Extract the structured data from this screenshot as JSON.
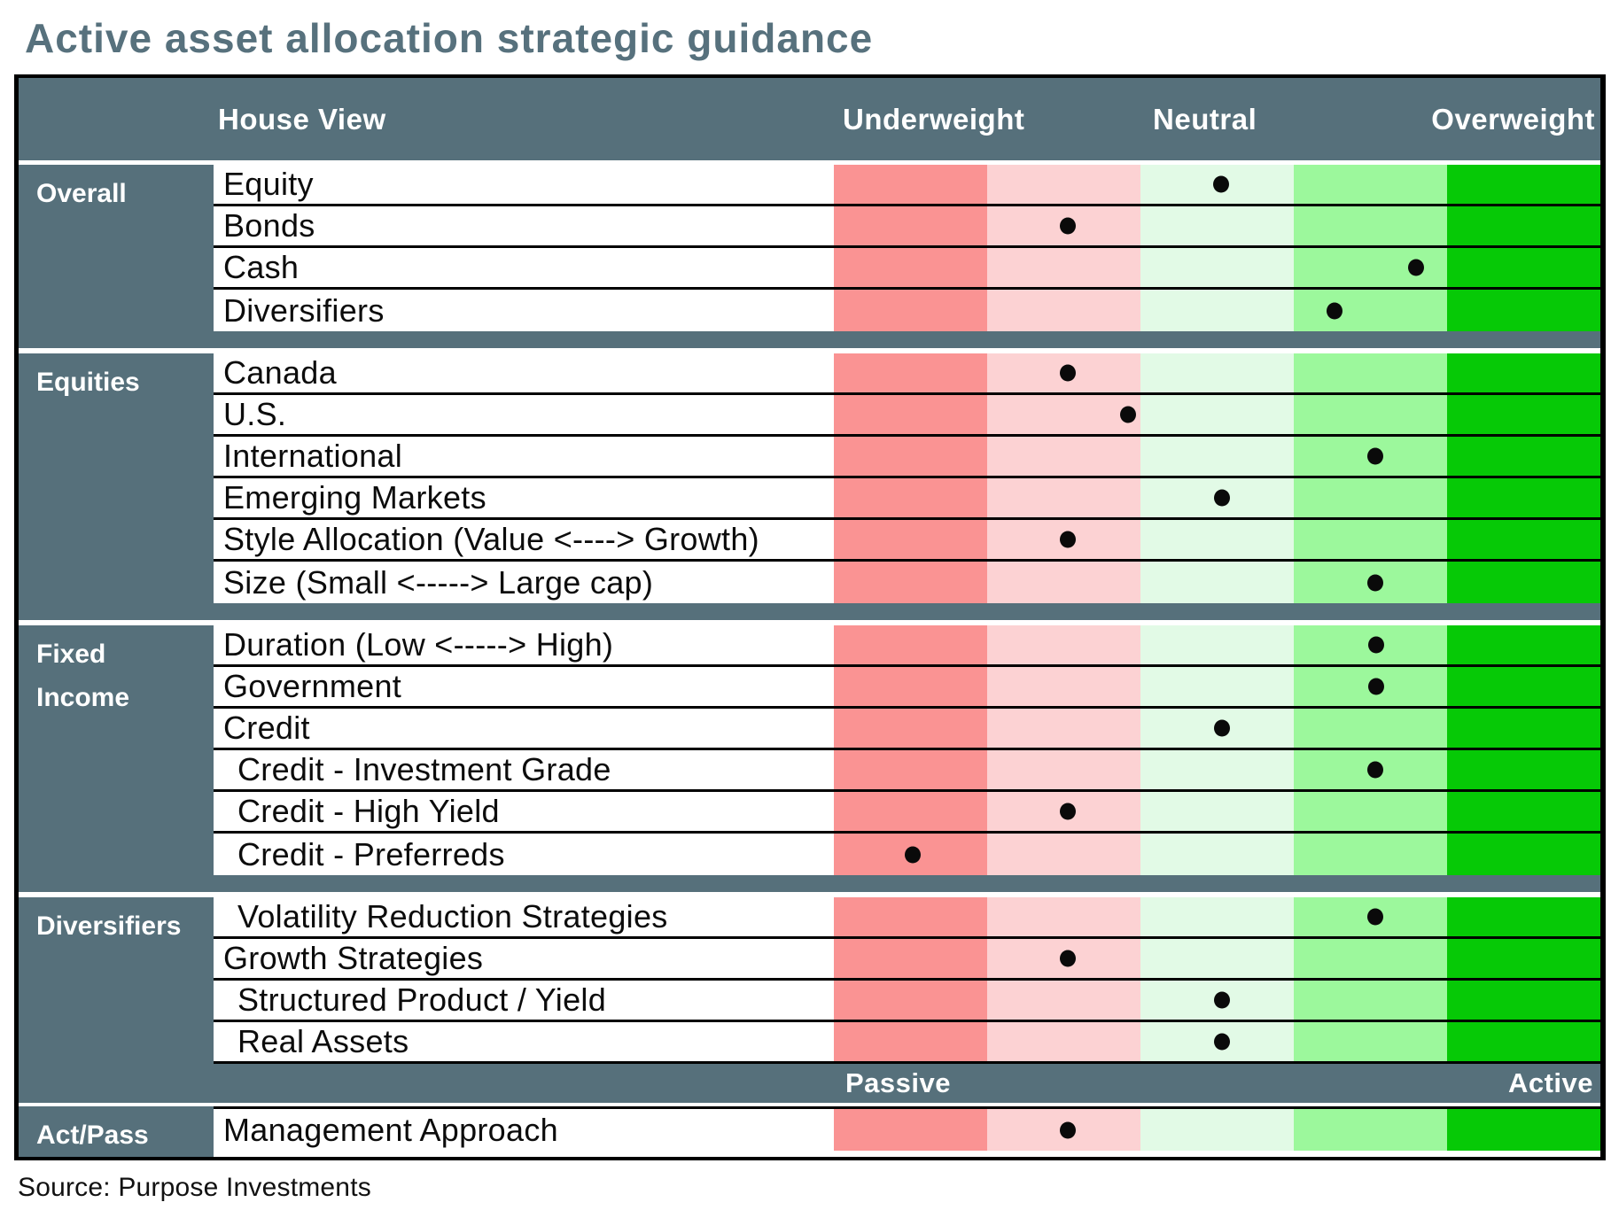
{
  "title": "Active asset allocation strategic guidance",
  "source": "Source: Purpose Investments",
  "header": {
    "house_view": "House View",
    "underweight": "Underweight",
    "neutral": "Neutral",
    "overweight": "Overweight"
  },
  "footer_band": {
    "passive": "Passive",
    "active": "Active"
  },
  "colors": {
    "slate": "#56707b",
    "title_text": "#57717d",
    "dot": "#0a0a0a",
    "scale": [
      "#fa9393",
      "#fcd2d3",
      "#e2fae6",
      "#9cf89c",
      "#06c906"
    ]
  },
  "sections": [
    {
      "name": "Overall",
      "name_lines": [
        "Overall"
      ],
      "gap_after": "band",
      "rows": [
        {
          "label": "Equity",
          "indent": false,
          "dot_pct": 50.5
        },
        {
          "label": "Bonds",
          "indent": false,
          "dot_pct": 30.5
        },
        {
          "label": "Cash",
          "indent": false,
          "dot_pct": 75.9
        },
        {
          "label": "Diversifiers",
          "indent": false,
          "dot_pct": 65.3
        }
      ]
    },
    {
      "name": "Equities",
      "name_lines": [
        "Equities"
      ],
      "gap_after": "band",
      "rows": [
        {
          "label": "Canada",
          "indent": false,
          "dot_pct": 30.5
        },
        {
          "label": "U.S.",
          "indent": false,
          "dot_pct": 38.4
        },
        {
          "label": "International",
          "indent": false,
          "dot_pct": 70.6
        },
        {
          "label": "Emerging Markets",
          "indent": false,
          "dot_pct": 50.6
        },
        {
          "label": "Style Allocation (Value <----> Growth)",
          "indent": false,
          "dot_pct": 30.5
        },
        {
          "label": "Size (Small <----->  Large cap)",
          "indent": false,
          "dot_pct": 70.6
        }
      ]
    },
    {
      "name": "Fixed Income",
      "name_lines": [
        "Fixed",
        "Income"
      ],
      "gap_after": "band",
      "rows": [
        {
          "label": "Duration (Low <-----> High)",
          "indent": false,
          "dot_pct": 70.7
        },
        {
          "label": "Government",
          "indent": false,
          "dot_pct": 70.7
        },
        {
          "label": "Credit",
          "indent": false,
          "dot_pct": 50.6
        },
        {
          "label": "Credit - Investment Grade",
          "indent": true,
          "dot_pct": 70.6
        },
        {
          "label": "Credit - High Yield",
          "indent": true,
          "dot_pct": 30.5
        },
        {
          "label": "Credit - Preferreds",
          "indent": true,
          "dot_pct": 10.3
        }
      ]
    },
    {
      "name": "Diversifiers",
      "name_lines": [
        "Diversifiers"
      ],
      "gap_after": "sliver",
      "passive_band": true,
      "rows": [
        {
          "label": "Volatility Reduction Strategies",
          "indent": true,
          "dot_pct": 70.6
        },
        {
          "label": "Growth Strategies",
          "indent": false,
          "dot_pct": 30.5
        },
        {
          "label": "Structured Product / Yield",
          "indent": true,
          "dot_pct": 50.6
        },
        {
          "label": "Real Assets",
          "indent": true,
          "dot_pct": 50.6
        }
      ]
    },
    {
      "name": "Act/Pass",
      "name_lines": [
        "Act/Pass"
      ],
      "gap_after": null,
      "border_top": true,
      "rows": [
        {
          "label": "Management Approach",
          "indent": false,
          "dot_pct": 30.5
        }
      ]
    }
  ],
  "chart_data": {
    "type": "table",
    "title": "Active asset allocation strategic guidance",
    "columns": [
      "House View",
      "Underweight",
      "Neutral",
      "Overweight"
    ],
    "scale_note": "5 color bands from strong underweight (red) to strong overweight (bright green); band 1=strong underweight, 3=neutral, 5=strong overweight; position_pct = dot position across the Underweight-to-Overweight axis",
    "bottom_axis": [
      "Passive",
      "Active"
    ],
    "rows": [
      {
        "section": "Overall",
        "label": "Equity",
        "band": 3,
        "position_pct": 50.5
      },
      {
        "section": "Overall",
        "label": "Bonds",
        "band": 2,
        "position_pct": 30.5
      },
      {
        "section": "Overall",
        "label": "Cash",
        "band": 4,
        "position_pct": 75.9
      },
      {
        "section": "Overall",
        "label": "Diversifiers",
        "band": 4,
        "position_pct": 65.3
      },
      {
        "section": "Equities",
        "label": "Canada",
        "band": 2,
        "position_pct": 30.5
      },
      {
        "section": "Equities",
        "label": "U.S.",
        "band": 2,
        "position_pct": 38.4
      },
      {
        "section": "Equities",
        "label": "International",
        "band": 4,
        "position_pct": 70.6
      },
      {
        "section": "Equities",
        "label": "Emerging Markets",
        "band": 3,
        "position_pct": 50.6
      },
      {
        "section": "Equities",
        "label": "Style Allocation (Value <----> Growth)",
        "band": 2,
        "position_pct": 30.5
      },
      {
        "section": "Equities",
        "label": "Size (Small <----->  Large cap)",
        "band": 4,
        "position_pct": 70.6
      },
      {
        "section": "Fixed Income",
        "label": "Duration (Low <-----> High)",
        "band": 4,
        "position_pct": 70.7
      },
      {
        "section": "Fixed Income",
        "label": "Government",
        "band": 4,
        "position_pct": 70.7
      },
      {
        "section": "Fixed Income",
        "label": "Credit",
        "band": 3,
        "position_pct": 50.6
      },
      {
        "section": "Fixed Income",
        "label": "Credit - Investment Grade",
        "band": 4,
        "position_pct": 70.6
      },
      {
        "section": "Fixed Income",
        "label": "Credit - High Yield",
        "band": 2,
        "position_pct": 30.5
      },
      {
        "section": "Fixed Income",
        "label": "Credit - Preferreds",
        "band": 1,
        "position_pct": 10.3
      },
      {
        "section": "Diversifiers",
        "label": "Volatility Reduction Strategies",
        "band": 4,
        "position_pct": 70.6
      },
      {
        "section": "Diversifiers",
        "label": "Growth Strategies",
        "band": 2,
        "position_pct": 30.5
      },
      {
        "section": "Diversifiers",
        "label": "Structured Product / Yield",
        "band": 3,
        "position_pct": 50.6
      },
      {
        "section": "Diversifiers",
        "label": "Real Assets",
        "band": 3,
        "position_pct": 50.6
      },
      {
        "section": "Act/Pass",
        "label": "Management Approach",
        "band": 2,
        "position_pct": 30.5
      }
    ]
  }
}
